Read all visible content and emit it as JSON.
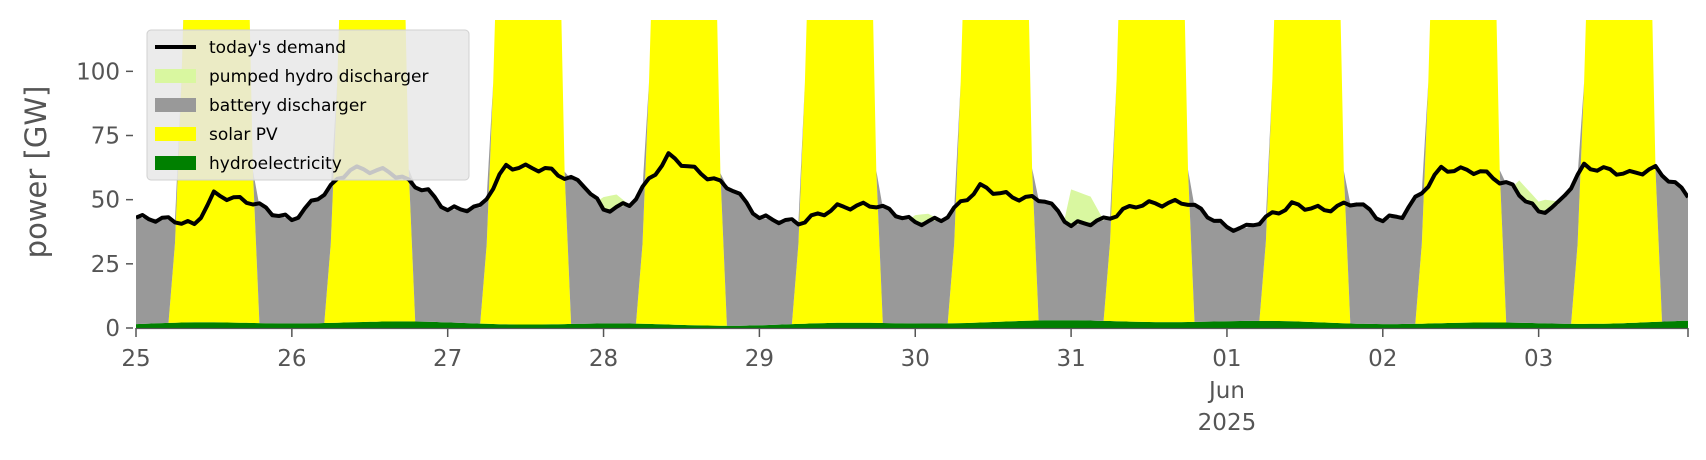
{
  "chart_data": {
    "type": "area",
    "ylabel": "power [GW]",
    "ylim": [
      0,
      120
    ],
    "y_ticks": [
      0,
      25,
      50,
      75,
      100
    ],
    "xlim": [
      "2025-05-25T00:00",
      "2025-06-03T23:00"
    ],
    "x_ticks": [
      {
        "date": "2025-05-25",
        "label": "25"
      },
      {
        "date": "2025-05-26",
        "label": "26"
      },
      {
        "date": "2025-05-27",
        "label": "27"
      },
      {
        "date": "2025-05-28",
        "label": "28"
      },
      {
        "date": "2025-05-29",
        "label": "29"
      },
      {
        "date": "2025-05-30",
        "label": "30"
      },
      {
        "date": "2025-05-31",
        "label": "31"
      },
      {
        "date": "2025-06-01",
        "label": "01",
        "label2": "Jun",
        "label3": "2025"
      },
      {
        "date": "2025-06-02",
        "label": "02"
      },
      {
        "date": "2025-06-03",
        "label": "03"
      }
    ],
    "grid": false,
    "legend_position": "top-left",
    "stacking_order_bottom_to_top": [
      "hydroelectricity",
      "solar PV",
      "battery discharger",
      "pumped hydro discharger"
    ],
    "series": [
      {
        "name": "today's demand",
        "kind": "line",
        "color": "#000000",
        "points": [
          [
            "2025-05-25T00:00",
            43
          ],
          [
            "2025-05-25T06:00",
            42
          ],
          [
            "2025-05-25T09:00",
            40
          ],
          [
            "2025-05-25T12:00",
            52
          ],
          [
            "2025-05-25T18:00",
            49
          ],
          [
            "2025-05-25T21:00",
            45
          ],
          [
            "2025-05-26T00:00",
            42
          ],
          [
            "2025-05-26T06:00",
            55
          ],
          [
            "2025-05-26T09:00",
            62
          ],
          [
            "2025-05-26T15:00",
            61
          ],
          [
            "2025-05-26T21:00",
            53
          ],
          [
            "2025-05-27T00:00",
            46
          ],
          [
            "2025-05-27T05:00",
            47
          ],
          [
            "2025-05-27T09:00",
            63
          ],
          [
            "2025-05-27T15:00",
            62
          ],
          [
            "2025-05-27T21:00",
            56
          ],
          [
            "2025-05-28T00:00",
            46
          ],
          [
            "2025-05-28T04:00",
            48
          ],
          [
            "2025-05-28T10:00",
            67
          ],
          [
            "2025-05-28T16:00",
            59
          ],
          [
            "2025-05-28T20:00",
            54
          ],
          [
            "2025-05-29T00:00",
            43
          ],
          [
            "2025-05-29T06:00",
            41
          ],
          [
            "2025-05-29T12:00",
            47
          ],
          [
            "2025-05-29T18:00",
            48
          ],
          [
            "2025-05-30T00:00",
            41
          ],
          [
            "2025-05-30T04:00",
            42
          ],
          [
            "2025-05-30T10:00",
            55
          ],
          [
            "2025-05-30T15:00",
            51
          ],
          [
            "2025-05-30T20:00",
            50
          ],
          [
            "2025-05-31T00:00",
            40
          ],
          [
            "2025-05-31T05:00",
            42
          ],
          [
            "2025-05-31T10:00",
            48
          ],
          [
            "2025-05-31T18:00",
            49
          ],
          [
            "2025-06-01T00:00",
            39
          ],
          [
            "2025-06-01T03:00",
            39
          ],
          [
            "2025-06-01T10:00",
            48
          ],
          [
            "2025-06-01T15:00",
            46
          ],
          [
            "2025-06-01T20:00",
            49
          ],
          [
            "2025-06-02T00:00",
            42
          ],
          [
            "2025-06-02T03:00",
            44
          ],
          [
            "2025-06-02T09:00",
            62
          ],
          [
            "2025-06-02T15:00",
            61
          ],
          [
            "2025-06-02T20:00",
            55
          ],
          [
            "2025-06-03T00:00",
            45
          ],
          [
            "2025-06-03T03:00",
            48
          ],
          [
            "2025-06-03T07:00",
            63
          ],
          [
            "2025-06-03T14:00",
            60
          ],
          [
            "2025-06-03T18:00",
            62
          ],
          [
            "2025-06-03T23:00",
            52
          ]
        ]
      },
      {
        "name": "pumped hydro discharger",
        "kind": "area",
        "color": "#d9f7a0",
        "points": [
          [
            "2025-05-28T00:00",
            5
          ],
          [
            "2025-05-28T02:00",
            5
          ],
          [
            "2025-05-28T04:00",
            0
          ],
          [
            "2025-05-30T00:00",
            3
          ],
          [
            "2025-05-30T02:00",
            3
          ],
          [
            "2025-05-30T04:00",
            0
          ],
          [
            "2025-05-31T00:00",
            14
          ],
          [
            "2025-05-31T03:00",
            10
          ],
          [
            "2025-05-31T05:00",
            0
          ],
          [
            "2025-06-02T21:00",
            5
          ],
          [
            "2025-06-03T01:00",
            4
          ],
          [
            "2025-06-03T04:00",
            0
          ]
        ]
      },
      {
        "name": "battery discharger",
        "kind": "area",
        "color": "#999999",
        "description": "fills the evening-to-morning gap each day, roughly 38-45 GW overnight"
      },
      {
        "name": "solar PV",
        "kind": "area",
        "color": "#ffff00",
        "description": "daily peaks well above 120 GW (clipped by the plot), ~0 GW overnight"
      },
      {
        "name": "hydroelectricity",
        "kind": "area",
        "color": "#008000",
        "description": "roughly 1.5-3 GW throughout"
      }
    ],
    "legend": [
      {
        "label": "today's demand",
        "symbol": "line",
        "color": "#000000"
      },
      {
        "label": "pumped hydro discharger",
        "symbol": "patch",
        "color": "#d9f7a0"
      },
      {
        "label": "battery discharger",
        "symbol": "patch",
        "color": "#999999"
      },
      {
        "label": "solar PV",
        "symbol": "patch",
        "color": "#ffff00"
      },
      {
        "label": "hydroelectricity",
        "symbol": "patch",
        "color": "#008000"
      }
    ]
  }
}
